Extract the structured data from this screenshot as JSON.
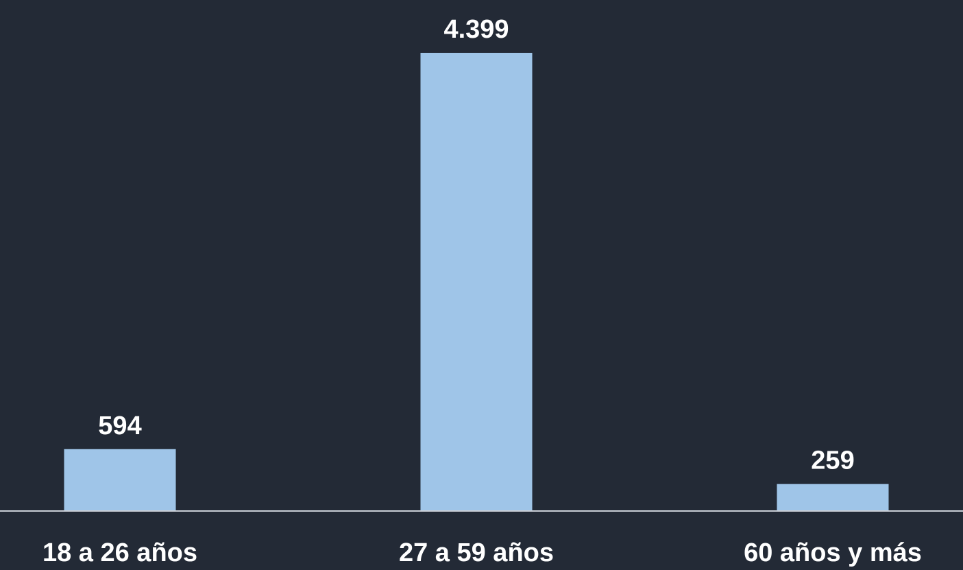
{
  "chart_data": {
    "type": "bar",
    "categories": [
      "18 a 26 años",
      "27 a 59 años",
      "60 años y más"
    ],
    "values": [
      594,
      4399,
      259
    ],
    "value_labels": [
      "594",
      "4.399",
      "259"
    ],
    "title": "",
    "xlabel": "",
    "ylabel": "",
    "ylim": [
      0,
      4399
    ],
    "grid": false,
    "legend": "none"
  },
  "colors": {
    "background": "#232a36",
    "bar": "#9fc5e8",
    "text": "#ffffff",
    "axis": "#c9ced6"
  }
}
